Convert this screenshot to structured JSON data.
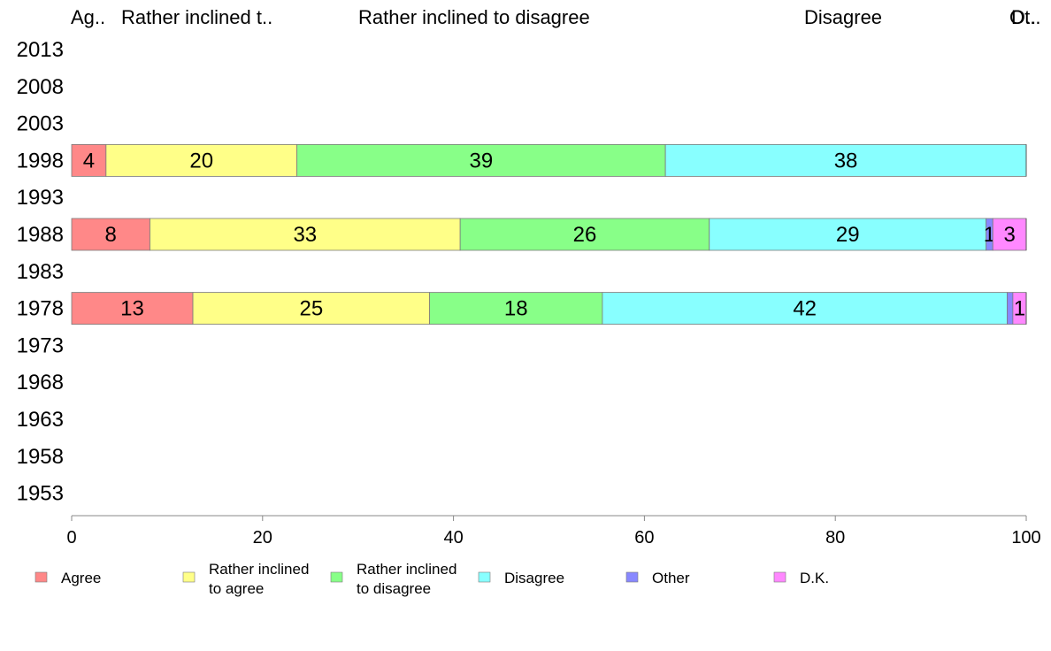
{
  "chart_data": {
    "type": "bar",
    "orientation": "horizontal",
    "stacked": true,
    "title": "",
    "xlabel": "",
    "ylabel": "",
    "xlim": [
      0,
      100
    ],
    "x_ticks": [
      0,
      20,
      40,
      60,
      80,
      100
    ],
    "categories": [
      "2013",
      "2008",
      "2003",
      "1998",
      "1993",
      "1988",
      "1983",
      "1978",
      "1973",
      "1968",
      "1963",
      "1958",
      "1953"
    ],
    "column_headers": [
      "Ag..",
      "Rather inclined t..",
      "Rather inclined to disagree",
      "Disagree",
      "Ot..",
      "D.."
    ],
    "series": [
      {
        "name": "Agree",
        "color": "#ff8888",
        "values": [
          null,
          null,
          null,
          3.6,
          null,
          8.2,
          null,
          12.7,
          null,
          null,
          null,
          null,
          null
        ]
      },
      {
        "name": "Rather inclined to agree",
        "color": "#ffff88",
        "values": [
          null,
          null,
          null,
          20,
          null,
          32.5,
          null,
          24.8,
          null,
          null,
          null,
          null,
          null
        ]
      },
      {
        "name": "Rather inclined to disagree",
        "color": "#88ff88",
        "values": [
          null,
          null,
          null,
          38.6,
          null,
          26.1,
          null,
          18.1,
          null,
          null,
          null,
          null,
          null
        ]
      },
      {
        "name": "Disagree",
        "color": "#88ffff",
        "values": [
          null,
          null,
          null,
          37.8,
          null,
          29.0,
          null,
          42.4,
          null,
          null,
          null,
          null,
          null
        ]
      },
      {
        "name": "Other",
        "color": "#8888ff",
        "values": [
          null,
          null,
          null,
          0,
          null,
          0.7,
          null,
          0.6,
          null,
          null,
          null,
          null,
          null
        ]
      },
      {
        "name": "D.K.",
        "color": "#ff88ff",
        "values": [
          null,
          null,
          null,
          0,
          null,
          3.5,
          null,
          1.4,
          null,
          null,
          null,
          null,
          null
        ]
      }
    ],
    "data_labels": {
      "1998": [
        "4",
        "20",
        "39",
        "38",
        "",
        ""
      ],
      "1988": [
        "8",
        "33",
        "26",
        "29",
        "1",
        "3"
      ],
      "1978": [
        "13",
        "25",
        "18",
        "42",
        "",
        "1"
      ]
    },
    "legend": {
      "placement": "bottom",
      "items": [
        {
          "lines": [
            "Agree"
          ],
          "color": "#ff8888"
        },
        {
          "lines": [
            "Rather inclined",
            "to agree"
          ],
          "color": "#ffff88"
        },
        {
          "lines": [
            "Rather inclined",
            "to disagree"
          ],
          "color": "#88ff88"
        },
        {
          "lines": [
            "Disagree"
          ],
          "color": "#88ffff"
        },
        {
          "lines": [
            "Other"
          ],
          "color": "#8888ff"
        },
        {
          "lines": [
            "D.K."
          ],
          "color": "#ff88ff"
        }
      ]
    },
    "grid": false
  }
}
